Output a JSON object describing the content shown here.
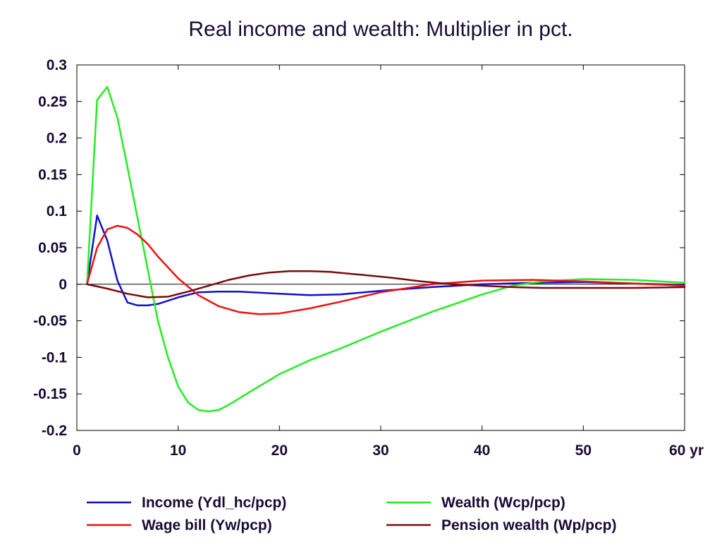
{
  "chart_data": {
    "type": "line",
    "title": "Real income and wealth: Multiplier in pct.",
    "x_unit_label": "yr",
    "xlim": [
      0,
      60
    ],
    "ylim": [
      -0.2,
      0.3
    ],
    "x_ticks": [
      0,
      10,
      20,
      30,
      40,
      50,
      60
    ],
    "x_tick_labels": [
      "0",
      "10",
      "20",
      "30",
      "40",
      "50",
      "60 yr"
    ],
    "y_ticks": [
      0.3,
      0.25,
      0.2,
      0.15,
      0.1,
      0.05,
      0,
      -0.05,
      -0.1,
      -0.15,
      -0.2
    ],
    "y_tick_labels": [
      "0.3",
      "0.25",
      "0.2",
      "0.15",
      "0.1",
      "0.05",
      "0",
      "-0.05",
      "-0.1",
      "-0.15",
      "-0.2"
    ],
    "grid": false,
    "zero_line": true,
    "legend_position": "bottom",
    "series": [
      {
        "name": "Income (Ydl_hc/pcp)",
        "color": "#1010d0",
        "x": [
          1,
          2,
          3,
          4,
          5,
          6,
          7,
          8,
          10,
          12,
          14,
          16,
          20,
          23,
          26,
          30,
          35,
          40,
          45,
          50,
          55,
          60
        ],
        "y": [
          0,
          0.094,
          0.06,
          0.005,
          -0.025,
          -0.029,
          -0.029,
          -0.027,
          -0.018,
          -0.011,
          -0.01,
          -0.01,
          -0.013,
          -0.015,
          -0.014,
          -0.009,
          -0.004,
          0,
          0.002,
          0.003,
          0.001,
          -0.001
        ]
      },
      {
        "name": "Wealth (Wcp/pcp)",
        "color": "#22ee22",
        "x": [
          1,
          2,
          3,
          4,
          5,
          6,
          7,
          8,
          9,
          10,
          11,
          12,
          13,
          14,
          15,
          17,
          20,
          23,
          26,
          30,
          35,
          40,
          43,
          46,
          50,
          55,
          60
        ],
        "y": [
          0,
          0.252,
          0.27,
          0.228,
          0.16,
          0.09,
          0.02,
          -0.05,
          -0.1,
          -0.14,
          -0.162,
          -0.172,
          -0.174,
          -0.172,
          -0.165,
          -0.148,
          -0.123,
          -0.104,
          -0.088,
          -0.065,
          -0.038,
          -0.014,
          -0.002,
          0.004,
          0.007,
          0.006,
          0.002
        ]
      },
      {
        "name": "Wage bill (Yw/pcp)",
        "color": "#ee1010",
        "x": [
          1,
          2,
          3,
          4,
          5,
          6,
          7,
          8,
          10,
          12,
          14,
          16,
          18,
          20,
          23,
          26,
          30,
          35,
          40,
          45,
          50,
          55,
          60
        ],
        "y": [
          0,
          0.05,
          0.075,
          0.08,
          0.077,
          0.068,
          0.055,
          0.038,
          0.008,
          -0.015,
          -0.03,
          -0.038,
          -0.041,
          -0.04,
          -0.033,
          -0.024,
          -0.011,
          0.0,
          0.005,
          0.006,
          0.004,
          0.001,
          -0.002
        ]
      },
      {
        "name": "Pension wealth (Wp/pcp)",
        "color": "#7a0a0a",
        "x": [
          1,
          3,
          5,
          7,
          9,
          11,
          13,
          15,
          17,
          19,
          21,
          23,
          25,
          28,
          31,
          34,
          37,
          40,
          43,
          46,
          50,
          55,
          60
        ],
        "y": [
          0,
          -0.006,
          -0.013,
          -0.018,
          -0.017,
          -0.01,
          -0.002,
          0.006,
          0.012,
          0.016,
          0.018,
          0.018,
          0.017,
          0.013,
          0.009,
          0.004,
          0.0,
          -0.002,
          -0.004,
          -0.005,
          -0.005,
          -0.005,
          -0.004
        ]
      }
    ],
    "legend_order": [
      0,
      1,
      2,
      3
    ]
  }
}
